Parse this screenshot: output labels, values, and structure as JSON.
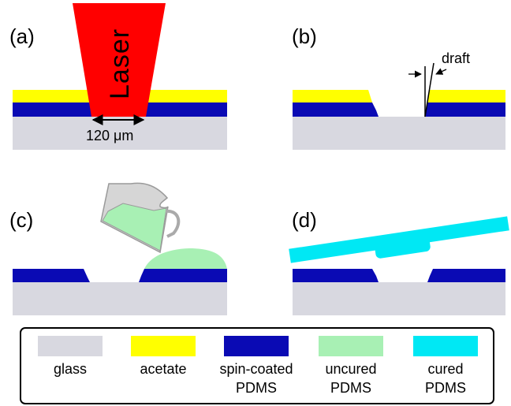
{
  "colors": {
    "glass": "#d8d8e0",
    "acetate": "#ffff00",
    "spin_coated_pdms": "#0a0ab4",
    "uncured_pdms": "#a8f0b4",
    "cured_pdms": "#00e8f4",
    "laser": "#ff0000",
    "cup": "#d6d6d6"
  },
  "panels": {
    "a": {
      "label": "(a)",
      "laser_text": "Laser",
      "width_text": "120 μm"
    },
    "b": {
      "label": "(b)",
      "draft_text": "draft"
    },
    "c": {
      "label": "(c)"
    },
    "d": {
      "label": "(d)"
    }
  },
  "legend": [
    {
      "swatch": "glass",
      "label_lines": [
        "glass"
      ]
    },
    {
      "swatch": "acetate",
      "label_lines": [
        "acetate"
      ]
    },
    {
      "swatch": "spin_coated_pdms",
      "label_lines": [
        "spin-coated",
        "PDMS"
      ]
    },
    {
      "swatch": "uncured_pdms",
      "label_lines": [
        "uncured",
        "PDMS"
      ]
    },
    {
      "swatch": "cured_pdms",
      "label_lines": [
        "cured",
        "PDMS"
      ]
    }
  ]
}
